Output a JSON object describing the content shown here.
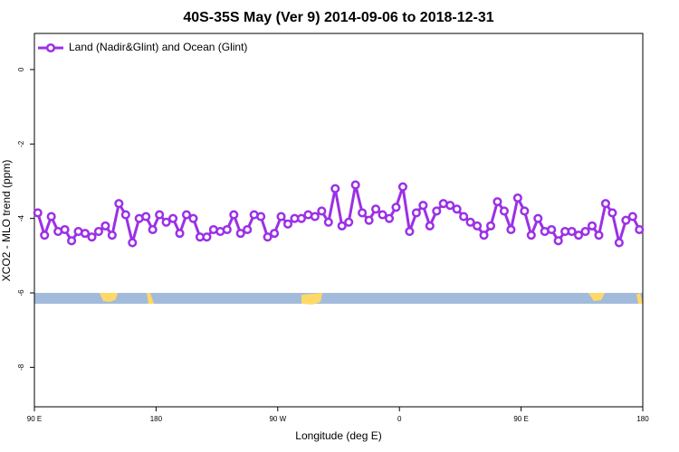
{
  "chart_data": {
    "type": "line",
    "title": "40S-35S May (Ver 9)   2014-09-06 to 2018-12-31",
    "x_label": "Longitude (deg E)",
    "y_label": "XCO2 - MLO trend (ppm)",
    "x": [
      92.5,
      97.5,
      102.5,
      107.5,
      112.5,
      117.5,
      122.5,
      127.5,
      132.5,
      137.5,
      142.5,
      147.5,
      152.5,
      157.5,
      162.5,
      167.5,
      172.5,
      177.5,
      182.5,
      187.5,
      192.5,
      197.5,
      202.5,
      207.5,
      212.5,
      217.5,
      222.5,
      227.5,
      232.5,
      237.5,
      242.5,
      247.5,
      252.5,
      257.5,
      262.5,
      267.5,
      272.5,
      277.5,
      282.5,
      287.5,
      292.5,
      297.5,
      302.5,
      307.5,
      312.5,
      317.5,
      322.5,
      327.5,
      332.5,
      337.5,
      342.5,
      347.5,
      352.5,
      357.5,
      362.5,
      367.5,
      372.5,
      377.5,
      382.5,
      387.5,
      392.5,
      397.5,
      402.5,
      407.5,
      412.5,
      417.5,
      422.5,
      427.5,
      432.5,
      437.5,
      442.5,
      447.5,
      452.5,
      457.5,
      462.5,
      467.5,
      472.5,
      477.5,
      482.5,
      487.5,
      492.5,
      497.5,
      502.5,
      507.5,
      512.5,
      517.5,
      522.5,
      527.5,
      532.5,
      537.5
    ],
    "series": [
      {
        "name": "Land (Nadir&Glint) and Ocean (Glint)",
        "color": "#9b30e6",
        "values": [
          -3.85,
          -4.45,
          -3.95,
          -4.35,
          -4.3,
          -4.6,
          -4.35,
          -4.4,
          -4.5,
          -4.35,
          -4.2,
          -4.45,
          -3.6,
          -3.9,
          -4.65,
          -4.0,
          -3.95,
          -4.3,
          -3.9,
          -4.1,
          -4.0,
          -4.4,
          -3.9,
          -4.0,
          -4.5,
          -4.5,
          -4.3,
          -4.35,
          -4.3,
          -3.9,
          -4.4,
          -4.3,
          -3.9,
          -3.95,
          -4.5,
          -4.4,
          -3.95,
          -4.15,
          -4.0,
          -4.0,
          -3.9,
          -3.95,
          -3.8,
          -4.1,
          -3.2,
          -4.2,
          -4.1,
          -3.1,
          -3.85,
          -4.05,
          -3.75,
          -3.9,
          -4.0,
          -3.7,
          -3.15,
          -4.35,
          -3.85,
          -3.65,
          -4.2,
          -3.8,
          -3.6,
          -3.65,
          -3.75,
          -3.95,
          -4.1,
          -4.2,
          -4.45,
          -4.2,
          -3.55,
          -3.8,
          -4.3,
          -3.45,
          -3.8,
          -4.45,
          -4.0,
          -4.35,
          -4.3,
          -4.6,
          -4.35,
          -4.35,
          -4.45,
          -4.35,
          -4.2,
          -4.45,
          -3.6,
          -3.85,
          -4.65,
          -4.05,
          -3.95,
          -4.3
        ]
      }
    ],
    "xlim": [
      90,
      540
    ],
    "xticks": [
      {
        "value": 90,
        "label": "90 E"
      },
      180,
      {
        "value": 270,
        "label": "90 W"
      },
      {
        "value": 360,
        "label": "0"
      },
      {
        "value": 450,
        "label": "90 E"
      },
      {
        "value": 540,
        "label": "180"
      }
    ],
    "ylim": [
      -9.06,
      0.97
    ],
    "yticks": [
      0,
      -2,
      -4,
      -6,
      -8
    ],
    "legend": "top-left"
  }
}
